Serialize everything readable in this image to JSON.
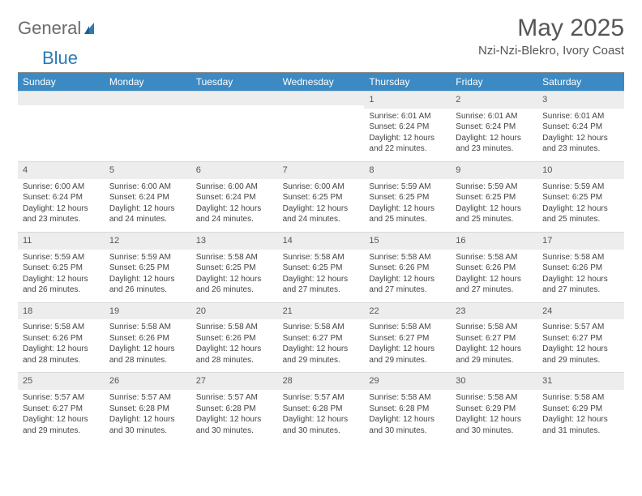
{
  "logo": {
    "text1": "General",
    "text2": "Blue"
  },
  "title": "May 2025",
  "location": "Nzi-Nzi-Blekro, Ivory Coast",
  "colors": {
    "header_bg": "#3b8ac4",
    "header_text": "#ffffff",
    "daynum_bg": "#ededed",
    "logo_gray": "#6b6b6b",
    "logo_blue": "#2a7ab8"
  },
  "day_names": [
    "Sunday",
    "Monday",
    "Tuesday",
    "Wednesday",
    "Thursday",
    "Friday",
    "Saturday"
  ],
  "weeks": [
    [
      {
        "n": "",
        "sr": "",
        "ss": "",
        "dl1": "",
        "dl2": ""
      },
      {
        "n": "",
        "sr": "",
        "ss": "",
        "dl1": "",
        "dl2": ""
      },
      {
        "n": "",
        "sr": "",
        "ss": "",
        "dl1": "",
        "dl2": ""
      },
      {
        "n": "",
        "sr": "",
        "ss": "",
        "dl1": "",
        "dl2": ""
      },
      {
        "n": "1",
        "sr": "Sunrise: 6:01 AM",
        "ss": "Sunset: 6:24 PM",
        "dl1": "Daylight: 12 hours",
        "dl2": "and 22 minutes."
      },
      {
        "n": "2",
        "sr": "Sunrise: 6:01 AM",
        "ss": "Sunset: 6:24 PM",
        "dl1": "Daylight: 12 hours",
        "dl2": "and 23 minutes."
      },
      {
        "n": "3",
        "sr": "Sunrise: 6:01 AM",
        "ss": "Sunset: 6:24 PM",
        "dl1": "Daylight: 12 hours",
        "dl2": "and 23 minutes."
      }
    ],
    [
      {
        "n": "4",
        "sr": "Sunrise: 6:00 AM",
        "ss": "Sunset: 6:24 PM",
        "dl1": "Daylight: 12 hours",
        "dl2": "and 23 minutes."
      },
      {
        "n": "5",
        "sr": "Sunrise: 6:00 AM",
        "ss": "Sunset: 6:24 PM",
        "dl1": "Daylight: 12 hours",
        "dl2": "and 24 minutes."
      },
      {
        "n": "6",
        "sr": "Sunrise: 6:00 AM",
        "ss": "Sunset: 6:24 PM",
        "dl1": "Daylight: 12 hours",
        "dl2": "and 24 minutes."
      },
      {
        "n": "7",
        "sr": "Sunrise: 6:00 AM",
        "ss": "Sunset: 6:25 PM",
        "dl1": "Daylight: 12 hours",
        "dl2": "and 24 minutes."
      },
      {
        "n": "8",
        "sr": "Sunrise: 5:59 AM",
        "ss": "Sunset: 6:25 PM",
        "dl1": "Daylight: 12 hours",
        "dl2": "and 25 minutes."
      },
      {
        "n": "9",
        "sr": "Sunrise: 5:59 AM",
        "ss": "Sunset: 6:25 PM",
        "dl1": "Daylight: 12 hours",
        "dl2": "and 25 minutes."
      },
      {
        "n": "10",
        "sr": "Sunrise: 5:59 AM",
        "ss": "Sunset: 6:25 PM",
        "dl1": "Daylight: 12 hours",
        "dl2": "and 25 minutes."
      }
    ],
    [
      {
        "n": "11",
        "sr": "Sunrise: 5:59 AM",
        "ss": "Sunset: 6:25 PM",
        "dl1": "Daylight: 12 hours",
        "dl2": "and 26 minutes."
      },
      {
        "n": "12",
        "sr": "Sunrise: 5:59 AM",
        "ss": "Sunset: 6:25 PM",
        "dl1": "Daylight: 12 hours",
        "dl2": "and 26 minutes."
      },
      {
        "n": "13",
        "sr": "Sunrise: 5:58 AM",
        "ss": "Sunset: 6:25 PM",
        "dl1": "Daylight: 12 hours",
        "dl2": "and 26 minutes."
      },
      {
        "n": "14",
        "sr": "Sunrise: 5:58 AM",
        "ss": "Sunset: 6:25 PM",
        "dl1": "Daylight: 12 hours",
        "dl2": "and 27 minutes."
      },
      {
        "n": "15",
        "sr": "Sunrise: 5:58 AM",
        "ss": "Sunset: 6:26 PM",
        "dl1": "Daylight: 12 hours",
        "dl2": "and 27 minutes."
      },
      {
        "n": "16",
        "sr": "Sunrise: 5:58 AM",
        "ss": "Sunset: 6:26 PM",
        "dl1": "Daylight: 12 hours",
        "dl2": "and 27 minutes."
      },
      {
        "n": "17",
        "sr": "Sunrise: 5:58 AM",
        "ss": "Sunset: 6:26 PM",
        "dl1": "Daylight: 12 hours",
        "dl2": "and 27 minutes."
      }
    ],
    [
      {
        "n": "18",
        "sr": "Sunrise: 5:58 AM",
        "ss": "Sunset: 6:26 PM",
        "dl1": "Daylight: 12 hours",
        "dl2": "and 28 minutes."
      },
      {
        "n": "19",
        "sr": "Sunrise: 5:58 AM",
        "ss": "Sunset: 6:26 PM",
        "dl1": "Daylight: 12 hours",
        "dl2": "and 28 minutes."
      },
      {
        "n": "20",
        "sr": "Sunrise: 5:58 AM",
        "ss": "Sunset: 6:26 PM",
        "dl1": "Daylight: 12 hours",
        "dl2": "and 28 minutes."
      },
      {
        "n": "21",
        "sr": "Sunrise: 5:58 AM",
        "ss": "Sunset: 6:27 PM",
        "dl1": "Daylight: 12 hours",
        "dl2": "and 29 minutes."
      },
      {
        "n": "22",
        "sr": "Sunrise: 5:58 AM",
        "ss": "Sunset: 6:27 PM",
        "dl1": "Daylight: 12 hours",
        "dl2": "and 29 minutes."
      },
      {
        "n": "23",
        "sr": "Sunrise: 5:58 AM",
        "ss": "Sunset: 6:27 PM",
        "dl1": "Daylight: 12 hours",
        "dl2": "and 29 minutes."
      },
      {
        "n": "24",
        "sr": "Sunrise: 5:57 AM",
        "ss": "Sunset: 6:27 PM",
        "dl1": "Daylight: 12 hours",
        "dl2": "and 29 minutes."
      }
    ],
    [
      {
        "n": "25",
        "sr": "Sunrise: 5:57 AM",
        "ss": "Sunset: 6:27 PM",
        "dl1": "Daylight: 12 hours",
        "dl2": "and 29 minutes."
      },
      {
        "n": "26",
        "sr": "Sunrise: 5:57 AM",
        "ss": "Sunset: 6:28 PM",
        "dl1": "Daylight: 12 hours",
        "dl2": "and 30 minutes."
      },
      {
        "n": "27",
        "sr": "Sunrise: 5:57 AM",
        "ss": "Sunset: 6:28 PM",
        "dl1": "Daylight: 12 hours",
        "dl2": "and 30 minutes."
      },
      {
        "n": "28",
        "sr": "Sunrise: 5:57 AM",
        "ss": "Sunset: 6:28 PM",
        "dl1": "Daylight: 12 hours",
        "dl2": "and 30 minutes."
      },
      {
        "n": "29",
        "sr": "Sunrise: 5:58 AM",
        "ss": "Sunset: 6:28 PM",
        "dl1": "Daylight: 12 hours",
        "dl2": "and 30 minutes."
      },
      {
        "n": "30",
        "sr": "Sunrise: 5:58 AM",
        "ss": "Sunset: 6:29 PM",
        "dl1": "Daylight: 12 hours",
        "dl2": "and 30 minutes."
      },
      {
        "n": "31",
        "sr": "Sunrise: 5:58 AM",
        "ss": "Sunset: 6:29 PM",
        "dl1": "Daylight: 12 hours",
        "dl2": "and 31 minutes."
      }
    ]
  ]
}
